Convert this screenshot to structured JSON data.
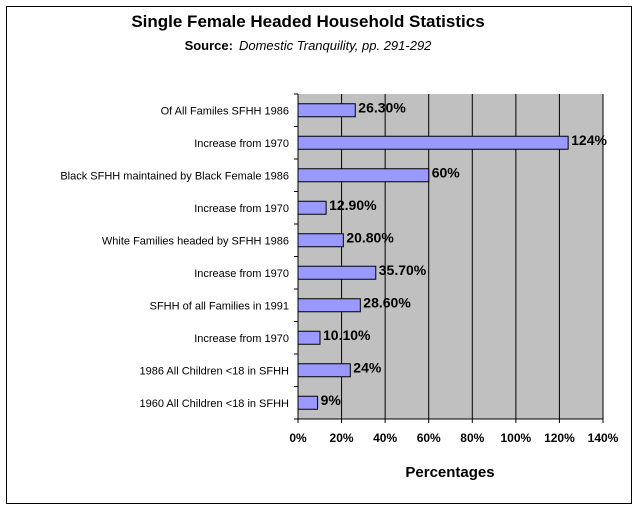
{
  "chart_data": {
    "type": "bar",
    "orientation": "horizontal",
    "title": "Single Female Headed Household Statistics",
    "subtitle_lead": "Source:",
    "subtitle_source": "Domestic Tranquility, pp. 291-292",
    "xlabel": "Percentages",
    "ylabel": "",
    "xlim": [
      0,
      140
    ],
    "x_ticks": [
      "0%",
      "20%",
      "40%",
      "60%",
      "80%",
      "100%",
      "120%",
      "140%"
    ],
    "grid": true,
    "legend": "none",
    "categories": [
      "Of All Familes SFHH 1986",
      "Increase from 1970",
      "Black SFHH maintained by Black Female 1986",
      "Increase from 1970",
      "White Families headed by SFHH 1986",
      "Increase from 1970",
      "SFHH of all Families in 1991",
      "Increase from 1970",
      "1986 All Children <18 in SFHH",
      "1960 All Children <18 in SFHH"
    ],
    "values": [
      26.3,
      124,
      60,
      12.9,
      20.8,
      35.7,
      28.6,
      10.1,
      24,
      9
    ],
    "data_labels": [
      "26.30%",
      "124%",
      "60%",
      "12.90%",
      "20.80%",
      "35.70%",
      "28.60%",
      "10.10%",
      "24%",
      "9%"
    ],
    "colors": {
      "bar_fill": "#9999ff",
      "bar_stroke": "#000000",
      "plot_bg": "#c0c0c0",
      "gridline": "#000000"
    }
  }
}
